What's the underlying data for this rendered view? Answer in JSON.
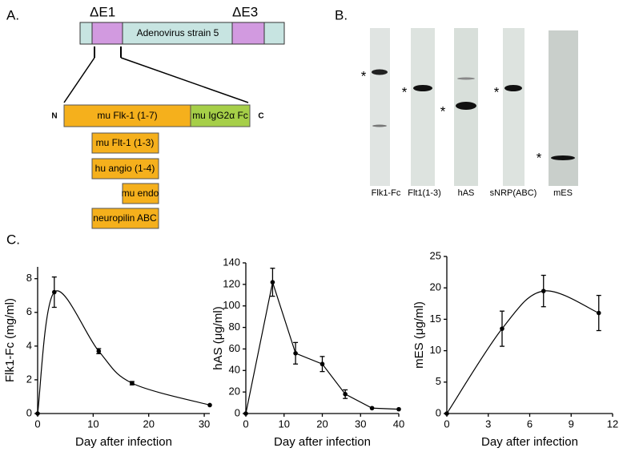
{
  "panel_a": {
    "label": "A.",
    "deletion_1": "ΔE1",
    "deletion_3": "ΔE3",
    "vector": "Adenovirus strain 5",
    "n_term": "N",
    "c_term": "C",
    "fusion_left": "mu Flk-1 (1-7)",
    "fusion_right": "mu IgG2α Fc",
    "inserts": [
      "mu Flt-1 (1-3)",
      "hu angio (1-4)",
      "mu endo",
      "neuropilin ABC"
    ]
  },
  "panel_b": {
    "label": "B.",
    "lanes": [
      {
        "name": "Flk1-Fc",
        "marker": "*"
      },
      {
        "name": "Flt1(1-3)",
        "marker": "*"
      },
      {
        "name": "hAS",
        "marker": "*"
      },
      {
        "name": "sNRP(ABC)",
        "marker": "*"
      },
      {
        "name": "mES",
        "marker": "*"
      }
    ]
  },
  "panel_c": {
    "label": "C."
  },
  "chart_data": [
    {
      "type": "line",
      "smooth": true,
      "x_label": "Day after infection",
      "y_label": "Flk1-Fc (mg/ml)",
      "x": [
        0,
        3,
        11,
        17,
        31
      ],
      "values": [
        0,
        7.2,
        3.7,
        1.8,
        0.5
      ],
      "errors": [
        null,
        0.9,
        0.15,
        0.1,
        null
      ],
      "xlim": [
        0,
        31
      ],
      "ylim": [
        0,
        8.7
      ],
      "xticks": [
        0,
        10,
        20,
        30
      ],
      "yticks": [
        0,
        2,
        4,
        6,
        8
      ],
      "color": "#000000"
    },
    {
      "type": "line",
      "smooth": false,
      "x_label": "Day after infection",
      "y_label": "hAS (μg/ml)",
      "x": [
        0,
        7,
        13,
        20,
        26,
        33,
        40
      ],
      "values": [
        0,
        122,
        56,
        46,
        18,
        5,
        4
      ],
      "errors": [
        null,
        13,
        10,
        7,
        4,
        null,
        null
      ],
      "xlim": [
        0,
        40
      ],
      "ylim": [
        0,
        140
      ],
      "xticks": [
        0,
        10,
        20,
        30,
        40
      ],
      "yticks": [
        0,
        20,
        40,
        60,
        80,
        100,
        120,
        140
      ],
      "color": "#000000"
    },
    {
      "type": "line",
      "smooth": true,
      "x_label": "Day after infection",
      "y_label": "mES (μg/ml)",
      "x": [
        0,
        4,
        7,
        11
      ],
      "values": [
        0,
        13.5,
        19.5,
        16
      ],
      "errors": [
        null,
        2.8,
        2.5,
        2.8
      ],
      "xlim": [
        0,
        12
      ],
      "ylim": [
        0,
        25
      ],
      "xticks": [
        0,
        3,
        6,
        9,
        12
      ],
      "yticks": [
        0,
        5,
        10,
        15,
        20,
        25
      ],
      "color": "#000000"
    }
  ]
}
